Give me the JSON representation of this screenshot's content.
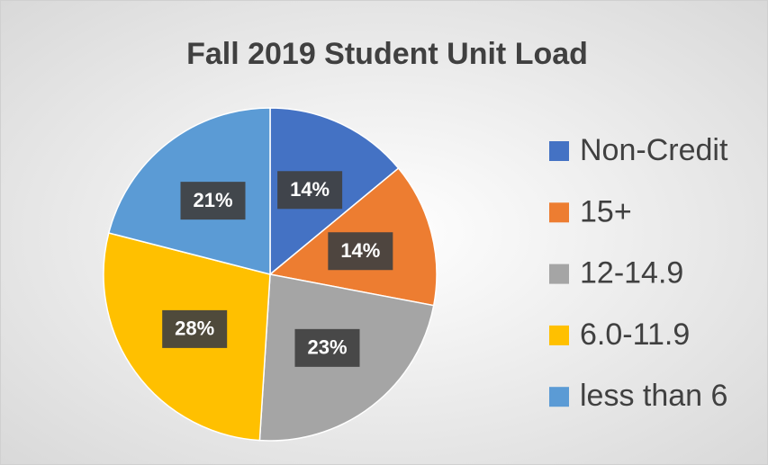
{
  "chart_data": {
    "type": "pie",
    "title": "Fall 2019 Student Unit Load",
    "categories": [
      "Non-Credit",
      "15+",
      "12-14.9",
      "6.0-11.9",
      "less than 6"
    ],
    "values": [
      14,
      14,
      23,
      28,
      21
    ],
    "value_labels": [
      "14%",
      "14%",
      "23%",
      "28%",
      "21%"
    ],
    "colors": [
      "#4472c4",
      "#ed7d31",
      "#a5a5a5",
      "#ffc000",
      "#5b9bd5"
    ],
    "legend": "right"
  }
}
